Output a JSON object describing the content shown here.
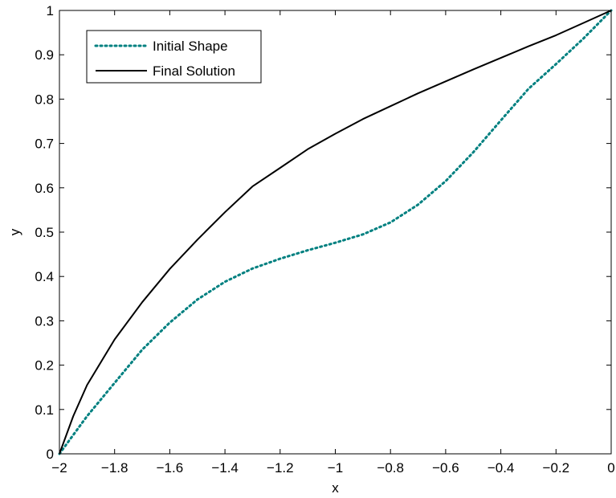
{
  "chart_data": {
    "type": "line",
    "title": "",
    "xlabel": "x",
    "ylabel": "y",
    "xlim": [
      -2,
      0
    ],
    "ylim": [
      0,
      1
    ],
    "xticks": [
      -2,
      -1.8,
      -1.6,
      -1.4,
      -1.2,
      -1,
      -0.8,
      -0.6,
      -0.4,
      -0.2,
      0
    ],
    "xtick_labels": [
      "−2",
      "−1.8",
      "−1.6",
      "−1.4",
      "−1.2",
      "−1",
      "−0.8",
      "−0.6",
      "−0.4",
      "−0.2",
      "0"
    ],
    "yticks": [
      0,
      0.1,
      0.2,
      0.3,
      0.4,
      0.5,
      0.6,
      0.7,
      0.8,
      0.9,
      1
    ],
    "ytick_labels": [
      "0",
      "0.1",
      "0.2",
      "0.3",
      "0.4",
      "0.5",
      "0.6",
      "0.7",
      "0.8",
      "0.9",
      "1"
    ],
    "grid": false,
    "legend_position": "top-left",
    "series": [
      {
        "name": "Initial Shape",
        "style": "dotted",
        "color": "#008080",
        "x": [
          -2,
          -1.9,
          -1.8,
          -1.7,
          -1.6,
          -1.5,
          -1.4,
          -1.3,
          -1.2,
          -1.1,
          -1.0,
          -0.9,
          -0.8,
          -0.7,
          -0.6,
          -0.5,
          -0.4,
          -0.3,
          -0.2,
          -0.1,
          0
        ],
        "y": [
          0,
          0.085,
          0.16,
          0.235,
          0.296,
          0.348,
          0.388,
          0.418,
          0.44,
          0.459,
          0.476,
          0.495,
          0.522,
          0.562,
          0.615,
          0.68,
          0.752,
          0.823,
          0.879,
          0.937,
          1.0
        ]
      },
      {
        "name": "Final Solution",
        "style": "solid",
        "color": "#000000",
        "x": [
          -2,
          -1.95,
          -1.9,
          -1.8,
          -1.7,
          -1.6,
          -1.5,
          -1.4,
          -1.3,
          -1.2,
          -1.1,
          -1.0,
          -0.9,
          -0.8,
          -0.7,
          -0.6,
          -0.5,
          -0.4,
          -0.3,
          -0.2,
          -0.1,
          0
        ],
        "y": [
          0,
          0.085,
          0.155,
          0.258,
          0.342,
          0.417,
          0.483,
          0.545,
          0.603,
          0.645,
          0.687,
          0.722,
          0.755,
          0.784,
          0.813,
          0.84,
          0.867,
          0.893,
          0.919,
          0.944,
          0.972,
          1.0
        ]
      }
    ]
  }
}
